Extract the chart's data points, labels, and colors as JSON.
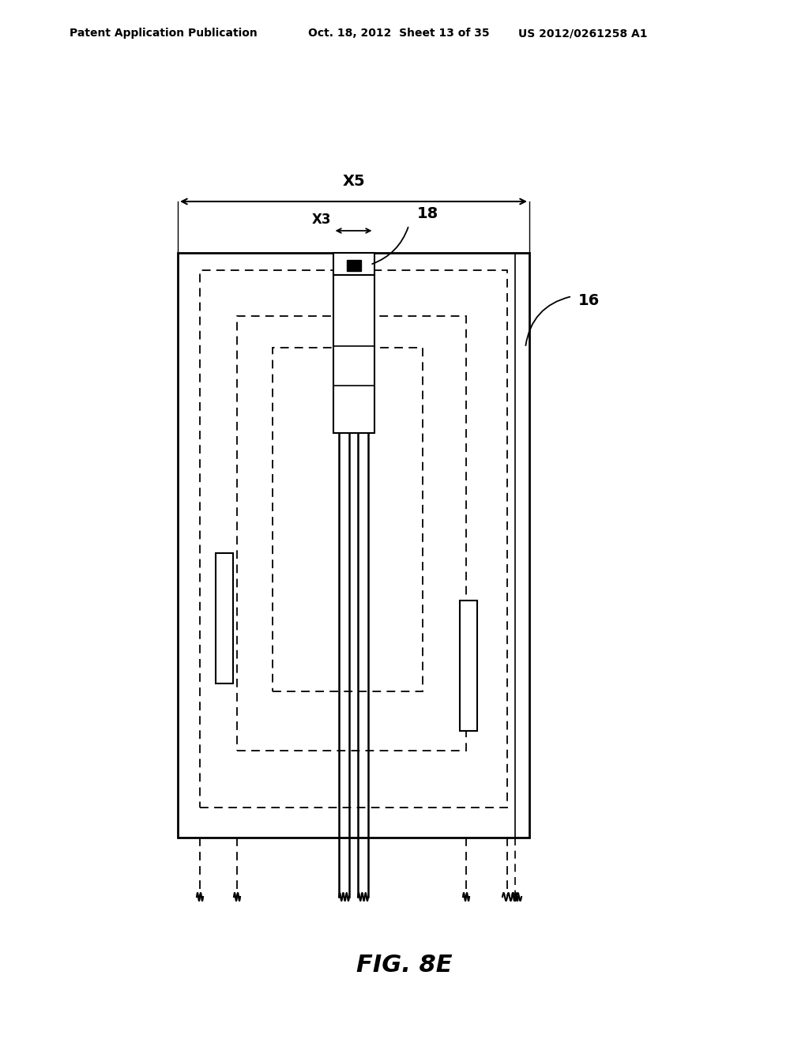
{
  "bg_color": "#ffffff",
  "line_color": "#000000",
  "header_text_left": "Patent Application Publication",
  "header_text_mid": "Oct. 18, 2012  Sheet 13 of 35",
  "header_text_right": "US 2012/0261258 A1",
  "fig_label": "FIG. 8E",
  "label_16": "16",
  "label_18": "18",
  "label_x3": "X3",
  "label_x5": "X5"
}
